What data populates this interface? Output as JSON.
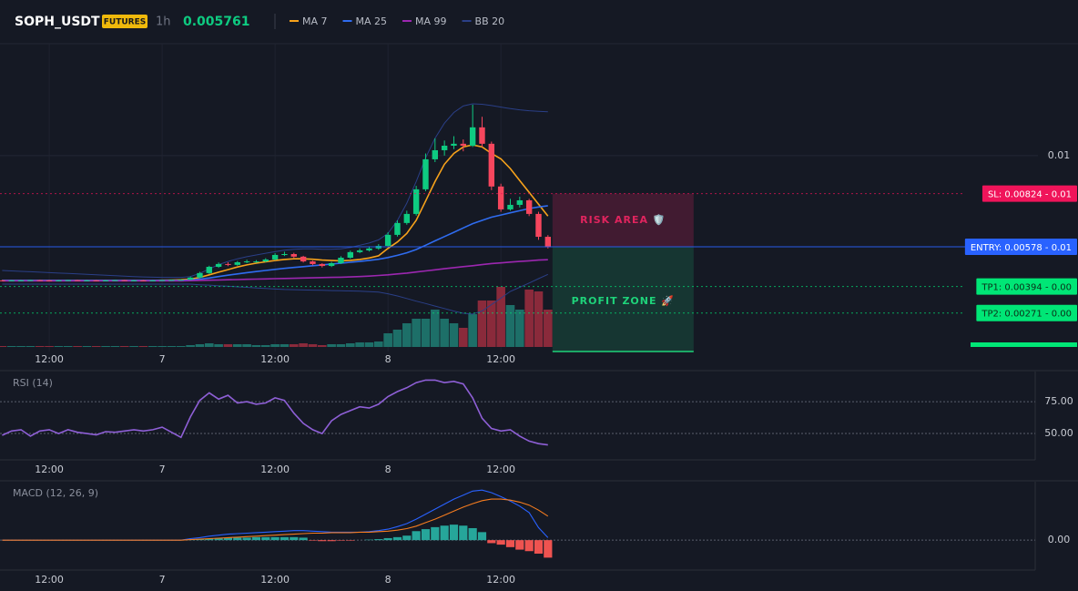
{
  "chart_data": [
    {
      "type": "candlestick",
      "title": "SOPH_USDT",
      "badge": "FUTURES",
      "interval": "1h",
      "last_price": 0.005761,
      "categories": [
        null,
        null,
        null,
        null,
        null,
        "12:00",
        null,
        null,
        null,
        null,
        null,
        null,
        null,
        null,
        null,
        null,
        null,
        "7",
        null,
        null,
        null,
        null,
        null,
        null,
        null,
        null,
        null,
        null,
        null,
        "12:00",
        null,
        null,
        null,
        null,
        null,
        null,
        null,
        null,
        null,
        null,
        null,
        "8",
        null,
        null,
        null,
        null,
        null,
        null,
        null,
        null,
        null,
        null,
        null,
        "12:00",
        null,
        null,
        null,
        null,
        null
      ],
      "open": [
        0.00422,
        0.00421,
        0.00422,
        0.00422,
        0.00423,
        0.00422,
        0.00421,
        0.00422,
        0.00423,
        0.00422,
        0.00422,
        0.00421,
        0.00422,
        0.00423,
        0.00422,
        0.00422,
        0.00421,
        0.00422,
        0.00423,
        0.00424,
        0.00425,
        0.00435,
        0.00456,
        0.00485,
        0.00498,
        0.00494,
        0.00506,
        0.0051,
        0.0051,
        0.00519,
        0.0054,
        0.00544,
        0.00532,
        0.0051,
        0.00498,
        0.00489,
        0.00502,
        0.00527,
        0.00553,
        0.00561,
        0.0057,
        0.00582,
        0.00633,
        0.00688,
        0.0073,
        0.00844,
        0.00983,
        0.01025,
        0.01046,
        0.01055,
        0.01046,
        0.01131,
        0.01055,
        0.00857,
        0.00751,
        0.00772,
        0.00793,
        0.0073,
        0.00624
      ],
      "high": [
        0.00424,
        0.00424,
        0.00424,
        0.00425,
        0.00425,
        0.00424,
        0.00424,
        0.00425,
        0.00425,
        0.00424,
        0.00424,
        0.00424,
        0.00425,
        0.00425,
        0.00424,
        0.00424,
        0.00424,
        0.00425,
        0.00426,
        0.00427,
        0.0044,
        0.00462,
        0.0049,
        0.00505,
        0.00506,
        0.00512,
        0.00518,
        0.00516,
        0.00525,
        0.00548,
        0.00555,
        0.0055,
        0.00536,
        0.00514,
        0.00502,
        0.00508,
        0.00534,
        0.0056,
        0.0057,
        0.0058,
        0.0059,
        0.00645,
        0.007,
        0.00745,
        0.0086,
        0.0101,
        0.0108,
        0.0107,
        0.0109,
        0.01075,
        0.01236,
        0.0118,
        0.01065,
        0.0087,
        0.008,
        0.0081,
        0.008,
        0.0074,
        0.00632
      ],
      "low": [
        0.00419,
        0.00419,
        0.0042,
        0.0042,
        0.0042,
        0.00419,
        0.00419,
        0.0042,
        0.0042,
        0.0042,
        0.00419,
        0.00419,
        0.0042,
        0.0042,
        0.0042,
        0.00419,
        0.00419,
        0.0042,
        0.00421,
        0.00422,
        0.00423,
        0.00432,
        0.00452,
        0.0048,
        0.00488,
        0.0049,
        0.00502,
        0.00504,
        0.00506,
        0.00515,
        0.00535,
        0.00526,
        0.00505,
        0.00492,
        0.00482,
        0.00484,
        0.00498,
        0.00522,
        0.00548,
        0.00556,
        0.00564,
        0.00578,
        0.00625,
        0.0068,
        0.00722,
        0.00835,
        0.0097,
        0.01,
        0.0103,
        0.0102,
        0.0104,
        0.0104,
        0.0084,
        0.0074,
        0.00745,
        0.0076,
        0.0072,
        0.0061,
        0.0057
      ],
      "close": [
        0.00421,
        0.00422,
        0.00422,
        0.00423,
        0.00422,
        0.00421,
        0.00422,
        0.00423,
        0.00422,
        0.00422,
        0.00421,
        0.00422,
        0.00423,
        0.00422,
        0.00422,
        0.00421,
        0.00422,
        0.00423,
        0.00424,
        0.00425,
        0.00435,
        0.00456,
        0.00485,
        0.00498,
        0.00494,
        0.00506,
        0.0051,
        0.0051,
        0.00519,
        0.0054,
        0.00544,
        0.00532,
        0.0051,
        0.00498,
        0.00489,
        0.00502,
        0.00527,
        0.00553,
        0.00561,
        0.0057,
        0.00582,
        0.00633,
        0.00688,
        0.0073,
        0.00844,
        0.00983,
        0.01025,
        0.01046,
        0.01055,
        0.01046,
        0.01131,
        0.01055,
        0.00857,
        0.00751,
        0.00772,
        0.00793,
        0.0073,
        0.00624,
        0.005761
      ],
      "up_color": "#0ecb81",
      "down_color": "#f6465d",
      "volume": [
        1,
        1,
        1,
        1,
        1,
        1,
        1,
        1,
        1,
        1,
        1,
        1,
        1,
        1,
        1,
        1,
        1,
        1,
        1,
        1,
        2,
        3,
        4,
        3,
        3,
        3,
        3,
        2,
        2,
        3,
        3,
        3,
        4,
        3,
        2,
        3,
        3,
        4,
        5,
        5,
        6,
        15,
        19,
        26,
        31,
        31,
        41,
        31,
        26,
        21,
        36,
        51,
        51,
        66,
        46,
        41,
        63,
        61,
        41
      ],
      "volume_lim": [
        0,
        100
      ],
      "volume_colors": [
        "#1d6f68",
        "#8a2a3b"
      ],
      "series": [
        {
          "name": "MA 7",
          "color": "#f7a21b",
          "values": [
            0.00422,
            0.00422,
            0.00422,
            0.00422,
            0.00422,
            0.00422,
            0.00422,
            0.00422,
            0.00422,
            0.00422,
            0.00422,
            0.00422,
            0.00422,
            0.00422,
            0.00422,
            0.00422,
            0.00422,
            0.00423,
            0.00424,
            0.00425,
            0.00428,
            0.00436,
            0.00448,
            0.0046,
            0.00472,
            0.00484,
            0.00494,
            0.00502,
            0.00508,
            0.00514,
            0.00519,
            0.00522,
            0.00522,
            0.0052,
            0.00516,
            0.00514,
            0.00513,
            0.00515,
            0.00519,
            0.00526,
            0.00536,
            0.0057,
            0.006,
            0.0064,
            0.007,
            0.0079,
            0.0088,
            0.0096,
            0.0101,
            0.0104,
            0.0105,
            0.0104,
            0.0101,
            0.00985,
            0.0094,
            0.00885,
            0.0083,
            0.00775,
            0.0072
          ]
        },
        {
          "name": "MA 25",
          "color": "#2f6cf0",
          "values": [
            0.00422,
            0.00422,
            0.00422,
            0.00422,
            0.00422,
            0.00422,
            0.00422,
            0.00422,
            0.00422,
            0.00422,
            0.00422,
            0.00422,
            0.00422,
            0.00422,
            0.00422,
            0.00422,
            0.00422,
            0.00422,
            0.00422,
            0.00422,
            0.00424,
            0.00428,
            0.00433,
            0.0044,
            0.00446,
            0.00452,
            0.00458,
            0.00463,
            0.00468,
            0.00473,
            0.00478,
            0.00482,
            0.00486,
            0.0049,
            0.00494,
            0.00498,
            0.00502,
            0.00506,
            0.0051,
            0.00515,
            0.0052,
            0.00528,
            0.00538,
            0.0055,
            0.00565,
            0.00585,
            0.00605,
            0.00625,
            0.00645,
            0.00665,
            0.00685,
            0.007,
            0.00715,
            0.00725,
            0.00735,
            0.00745,
            0.00755,
            0.00762,
            0.00768
          ]
        },
        {
          "name": "MA 99",
          "color": "#9c27b0",
          "values": [
            0.0042,
            0.0042,
            0.0042,
            0.0042,
            0.0042,
            0.0042,
            0.0042,
            0.0042,
            0.0042,
            0.0042,
            0.0042,
            0.0042,
            0.0042,
            0.0042,
            0.0042,
            0.0042,
            0.0042,
            0.0042,
            0.0042,
            0.0042,
            0.00421,
            0.00422,
            0.00423,
            0.00424,
            0.00425,
            0.00426,
            0.00427,
            0.00428,
            0.00429,
            0.0043,
            0.00431,
            0.00432,
            0.00433,
            0.00434,
            0.00435,
            0.00436,
            0.00437,
            0.00438,
            0.0044,
            0.00442,
            0.00445,
            0.00448,
            0.00452,
            0.00456,
            0.00461,
            0.00466,
            0.00471,
            0.00476,
            0.00481,
            0.00486,
            0.0049,
            0.00495,
            0.005,
            0.00503,
            0.00507,
            0.0051,
            0.00513,
            0.00516,
            0.00518
          ]
        },
        {
          "name": "BB 20",
          "color": "#2a3f87",
          "upper": [
            0.00468,
            0.00466,
            0.00464,
            0.00462,
            0.0046,
            0.00458,
            0.00456,
            0.00454,
            0.00452,
            0.0045,
            0.00448,
            0.00446,
            0.00444,
            0.00442,
            0.0044,
            0.00438,
            0.00437,
            0.00436,
            0.00436,
            0.00436,
            0.0044,
            0.00455,
            0.00475,
            0.00495,
            0.0051,
            0.00522,
            0.00532,
            0.0054,
            0.00548,
            0.00555,
            0.00562,
            0.00566,
            0.00568,
            0.00568,
            0.00566,
            0.00566,
            0.00568,
            0.00575,
            0.00585,
            0.00595,
            0.0061,
            0.0064,
            0.007,
            0.0078,
            0.0088,
            0.0099,
            0.0108,
            0.0115,
            0.012,
            0.0123,
            0.0124,
            0.01238,
            0.01232,
            0.01225,
            0.01218,
            0.01212,
            0.01208,
            0.01205,
            0.01203
          ],
          "lower": [
            0.00405,
            0.00405,
            0.00405,
            0.00405,
            0.00405,
            0.00405,
            0.00405,
            0.00405,
            0.00405,
            0.00405,
            0.00405,
            0.00405,
            0.00405,
            0.00405,
            0.00405,
            0.00405,
            0.00405,
            0.00405,
            0.00405,
            0.00405,
            0.00405,
            0.00402,
            0.004,
            0.00397,
            0.00395,
            0.00392,
            0.0039,
            0.00387,
            0.00385,
            0.00382,
            0.0038,
            0.00379,
            0.00378,
            0.00377,
            0.00376,
            0.00375,
            0.00374,
            0.00373,
            0.00372,
            0.0037,
            0.00368,
            0.0036,
            0.0035,
            0.00338,
            0.00326,
            0.00315,
            0.00303,
            0.00292,
            0.0028,
            0.0027,
            0.00266,
            0.0028,
            0.0031,
            0.0034,
            0.00371,
            0.0039,
            0.0041,
            0.0043,
            0.0045
          ]
        }
      ],
      "ylim": [
        0.00118,
        0.0151
      ],
      "yticks": [
        0.01
      ],
      "grid": true,
      "levels": [
        {
          "label": "SL: 0.00824 - 0.01",
          "value": 0.00824,
          "color": "#f0145a"
        },
        {
          "label": "ENTRY: 0.00578 - 0.01",
          "value": 0.00578,
          "color": "#2962ff"
        },
        {
          "label": "TP1: 0.00394 - 0.00",
          "value": 0.00394,
          "color": "#00e676"
        },
        {
          "label": "TP2: 0.00271 - 0.00",
          "value": 0.00271,
          "color": "#00e676"
        }
      ],
      "zones": [
        {
          "label": "RISK AREA 🛡️",
          "color": "#e0245e"
        },
        {
          "label": "PROFIT ZONE 🚀",
          "color": "#1ed37a"
        }
      ]
    },
    {
      "type": "line",
      "title": "RSI (14)",
      "color": "#8e5fd6",
      "values": [
        48.6,
        52,
        53,
        48,
        52,
        53,
        50,
        53,
        51,
        50,
        49,
        51.5,
        51,
        52,
        53,
        52,
        53,
        55,
        51,
        47,
        63,
        76,
        82,
        77,
        80,
        74,
        75,
        73,
        74,
        78,
        76,
        66,
        58,
        53,
        50,
        60,
        65,
        68,
        71,
        70,
        73,
        79,
        83,
        86,
        90,
        92,
        92,
        90,
        91,
        89,
        78,
        62,
        54,
        52,
        53,
        48,
        44,
        42,
        41
      ],
      "ylim": [
        30,
        98
      ],
      "yticks": [
        {
          "value": 75,
          "label": "75.00"
        },
        {
          "value": 50,
          "label": "50.00"
        }
      ]
    },
    {
      "type": "macd",
      "title": "MACD (12, 26, 9)",
      "series": [
        {
          "color": "#2962ff",
          "values": [
            0,
            0,
            0,
            0,
            0,
            0,
            0,
            0,
            0,
            0,
            0,
            0,
            0,
            0,
            0,
            0,
            0,
            0,
            0,
            0,
            3e-05,
            5e-05,
            8e-05,
            0.0001,
            0.00012,
            0.00013,
            0.00014,
            0.00015,
            0.00016,
            0.00017,
            0.00018,
            0.00019,
            0.00019,
            0.00018,
            0.00017,
            0.00016,
            0.00016,
            0.00016,
            0.00016,
            0.00017,
            0.00019,
            0.00022,
            0.00027,
            0.00033,
            0.00042,
            0.00052,
            0.00062,
            0.00072,
            0.00082,
            0.0009,
            0.00098,
            0.001,
            0.00095,
            0.00087,
            0.00078,
            0.00068,
            0.00055,
            0.00025,
            5e-05
          ]
        },
        {
          "color": "#f57c1f",
          "values": [
            0,
            0,
            0,
            0,
            0,
            0,
            0,
            0,
            0,
            0,
            0,
            0,
            0,
            0,
            0,
            0,
            0,
            0,
            0,
            0,
            1e-05,
            2e-05,
            3e-05,
            4e-05,
            5e-05,
            6e-05,
            7e-05,
            8e-05,
            9e-05,
            0.0001,
            0.00011,
            0.00012,
            0.00013,
            0.00014,
            0.00014,
            0.00015,
            0.00015,
            0.00015,
            0.00016,
            0.00016,
            0.00017,
            0.00018,
            0.0002,
            0.00023,
            0.00028,
            0.00035,
            0.00042,
            0.0005,
            0.00058,
            0.00066,
            0.00073,
            0.00079,
            0.00082,
            0.00082,
            0.0008,
            0.00076,
            0.0007,
            0.0006,
            0.00048
          ]
        }
      ],
      "histogram": {
        "colors": [
          "#26a69a",
          "#ef5350"
        ],
        "values": [
          0,
          0,
          0,
          0,
          0,
          0,
          0,
          0,
          0,
          0,
          0,
          0,
          0,
          0,
          0,
          0,
          0,
          0,
          0,
          0,
          1e-05,
          2e-05,
          3e-05,
          4e-05,
          5e-05,
          5e-05,
          5e-05,
          6e-05,
          6e-05,
          6e-05,
          6e-05,
          6e-05,
          5e-05,
          -1e-05,
          -2e-05,
          -2e-05,
          -1e-05,
          -1e-05,
          0,
          1e-05,
          2e-05,
          4e-05,
          6e-05,
          9e-05,
          0.00018,
          0.00022,
          0.00026,
          0.00029,
          0.00031,
          0.00029,
          0.00024,
          0.00016,
          -6e-05,
          -9e-05,
          -0.00014,
          -0.00019,
          -0.00022,
          -0.00027,
          -0.00035
        ]
      },
      "ylim": [
        -0.00058,
        0.00115
      ],
      "yticks": [
        {
          "value": 0,
          "label": "0.00"
        }
      ]
    }
  ]
}
